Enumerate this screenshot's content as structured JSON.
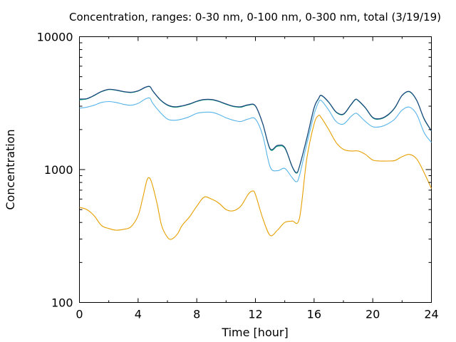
{
  "chart_data": {
    "type": "line",
    "title": "Concentration, ranges: 0-30 nm, 0-100 nm, 0-300 nm, total (3/19/19)",
    "xlabel": "Time [hour]",
    "ylabel": "Concentration",
    "xlim": [
      0,
      24
    ],
    "ylim": [
      100,
      10000
    ],
    "yscale": "log",
    "xticks": [
      "0",
      "4",
      "8",
      "12",
      "16",
      "20",
      "24"
    ],
    "yticks": [
      "100",
      "1000",
      "10000"
    ],
    "grid": false,
    "legend": "none",
    "series": [
      {
        "color": "#e69f00",
        "x": [
          0,
          0.5,
          1,
          1.5,
          2,
          2.5,
          3,
          3.5,
          4,
          4.3,
          4.6,
          4.8,
          5,
          5.3,
          5.6,
          6,
          6.3,
          6.7,
          7,
          7.5,
          8,
          8.5,
          9,
          9.5,
          10,
          10.5,
          11,
          11.5,
          11.8,
          12,
          12.5,
          13,
          13.5,
          14,
          14.5,
          15,
          15.5,
          16,
          16.3,
          16.5,
          17,
          17.5,
          18,
          18.5,
          19,
          19.5,
          20,
          20.5,
          21,
          21.5,
          22,
          22.5,
          23,
          23.5,
          24
        ],
        "y": [
          520,
          500,
          450,
          380,
          360,
          350,
          355,
          370,
          450,
          600,
          830,
          860,
          750,
          550,
          380,
          310,
          300,
          330,
          380,
          440,
          530,
          620,
          600,
          560,
          500,
          490,
          530,
          650,
          690,
          650,
          430,
          320,
          350,
          400,
          410,
          430,
          1200,
          2200,
          2550,
          2450,
          2000,
          1600,
          1420,
          1380,
          1380,
          1300,
          1180,
          1160,
          1160,
          1170,
          1250,
          1300,
          1200,
          950,
          720
        ]
      },
      {
        "color": "#56b4e9",
        "x": [
          0,
          0.5,
          1,
          1.5,
          2,
          2.5,
          3,
          3.5,
          4,
          4.5,
          4.8,
          5,
          5.5,
          6,
          6.5,
          7,
          7.5,
          8,
          8.5,
          9,
          9.5,
          10,
          10.5,
          11,
          11.5,
          12,
          12.5,
          13,
          13.5,
          14,
          14.5,
          14.8,
          15,
          15.5,
          16,
          16.3,
          16.5,
          17,
          17.5,
          18,
          18.5,
          18.8,
          19,
          19.5,
          20,
          20.5,
          21,
          21.5,
          22,
          22.5,
          23,
          23.5,
          24
        ],
        "y": [
          2900,
          2950,
          3050,
          3200,
          3250,
          3200,
          3100,
          3050,
          3150,
          3400,
          3450,
          3150,
          2700,
          2400,
          2350,
          2400,
          2500,
          2650,
          2700,
          2700,
          2600,
          2450,
          2350,
          2300,
          2400,
          2400,
          1800,
          1050,
          980,
          1020,
          870,
          810,
          900,
          1550,
          2600,
          3200,
          3300,
          2800,
          2300,
          2200,
          2500,
          2650,
          2600,
          2300,
          2100,
          2100,
          2200,
          2400,
          2800,
          2950,
          2600,
          1900,
          1600
        ]
      },
      {
        "color": "#009e73",
        "x": [
          0,
          0.5,
          1,
          1.5,
          2,
          2.5,
          3,
          3.5,
          4,
          4.5,
          4.8,
          5,
          5.5,
          6,
          6.5,
          7,
          7.5,
          8,
          8.5,
          9,
          9.5,
          10,
          10.5,
          11,
          11.5,
          12,
          12.5,
          13,
          13.5,
          14,
          14.5,
          14.8,
          15,
          15.5,
          16,
          16.3,
          16.5,
          17,
          17.5,
          18,
          18.5,
          18.8,
          19,
          19.5,
          20,
          20.5,
          21,
          21.5,
          22,
          22.5,
          23,
          23.5,
          24
        ],
        "y": [
          3350,
          3400,
          3600,
          3850,
          4000,
          3950,
          3850,
          3800,
          3900,
          4150,
          4200,
          3900,
          3350,
          3050,
          2950,
          3000,
          3100,
          3250,
          3350,
          3350,
          3250,
          3100,
          2980,
          2950,
          3050,
          3000,
          2200,
          1420,
          1500,
          1450,
          1050,
          940,
          1050,
          1700,
          2900,
          3400,
          3600,
          3200,
          2700,
          2600,
          3050,
          3350,
          3300,
          2900,
          2450,
          2400,
          2550,
          2900,
          3600,
          3850,
          3300,
          2400,
          1950
        ]
      },
      {
        "color": "#1f3f7f",
        "x": [
          0,
          0.5,
          1,
          1.5,
          2,
          2.5,
          3,
          3.5,
          4,
          4.5,
          4.8,
          5,
          5.5,
          6,
          6.5,
          7,
          7.5,
          8,
          8.5,
          9,
          9.5,
          10,
          10.5,
          11,
          11.5,
          12,
          12.5,
          13,
          13.5,
          14,
          14.5,
          14.8,
          15,
          15.5,
          16,
          16.3,
          16.5,
          17,
          17.5,
          18,
          18.5,
          18.8,
          19,
          19.5,
          20,
          20.5,
          21,
          21.5,
          22,
          22.5,
          23,
          23.5,
          24
        ],
        "y": [
          3400,
          3420,
          3620,
          3870,
          4020,
          3970,
          3870,
          3820,
          3920,
          4170,
          4220,
          3920,
          3370,
          3070,
          2970,
          3020,
          3120,
          3270,
          3370,
          3370,
          3270,
          3120,
          3000,
          2970,
          3070,
          3020,
          2220,
          1440,
          1520,
          1470,
          1060,
          950,
          1060,
          1720,
          2920,
          3420,
          3620,
          3220,
          2720,
          2620,
          3070,
          3370,
          3320,
          2920,
          2470,
          2420,
          2570,
          2920,
          3620,
          3870,
          3320,
          2420,
          1960
        ]
      }
    ]
  }
}
